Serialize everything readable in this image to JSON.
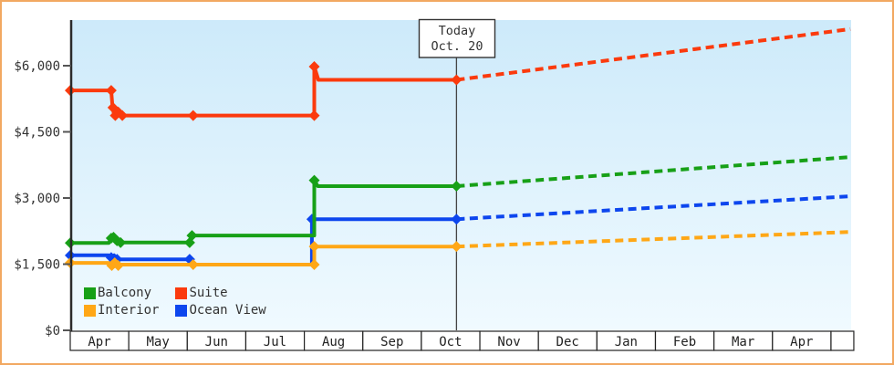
{
  "chart_data": {
    "type": "line",
    "title": "",
    "xlabel": "",
    "ylabel": "",
    "ylim": [
      0,
      7050
    ],
    "grid": false,
    "today_line": {
      "month_pos": 6.6,
      "label_line1": "Today",
      "label_line2": "Oct. 20"
    },
    "months": [
      "Apr",
      "May",
      "Jun",
      "Jul",
      "Aug",
      "Sep",
      "Oct",
      "Nov",
      "Dec",
      "Jan",
      "Feb",
      "Mar",
      "Apr"
    ],
    "y_ticks": [
      {
        "label": "$0",
        "value": 0
      },
      {
        "label": "$1,500",
        "value": 1500
      },
      {
        "label": "$3,000",
        "value": 3000
      },
      {
        "label": "$4,500",
        "value": 4500
      },
      {
        "label": "$6,000",
        "value": 6000
      }
    ],
    "series": [
      {
        "name": "Ocean View",
        "color": "#0d46ee",
        "history": [
          [
            0,
            1700
          ],
          [
            0.66,
            1700
          ],
          [
            0.7,
            1630
          ],
          [
            0.75,
            1700
          ],
          [
            0.8,
            1610
          ],
          [
            2.04,
            1610
          ],
          [
            2.08,
            1490
          ],
          [
            4.13,
            1490
          ],
          [
            4.13,
            2520
          ],
          [
            6.6,
            2520
          ]
        ],
        "markers": [
          [
            0,
            1700
          ],
          [
            0.7,
            1650
          ],
          [
            0.8,
            1610
          ],
          [
            2.04,
            1610
          ],
          [
            4.13,
            2520
          ],
          [
            6.6,
            2520
          ]
        ],
        "forecast": [
          [
            6.6,
            2520
          ],
          [
            13.33,
            3040
          ]
        ]
      },
      {
        "name": "Interior",
        "color": "#ffa716",
        "history": [
          [
            0,
            1530
          ],
          [
            0.66,
            1530
          ],
          [
            0.71,
            1470
          ],
          [
            0.75,
            1530
          ],
          [
            0.8,
            1470
          ],
          [
            0.86,
            1490
          ],
          [
            2.1,
            1490
          ],
          [
            4.17,
            1490
          ],
          [
            4.17,
            1900
          ],
          [
            6.6,
            1900
          ]
        ],
        "markers": [
          [
            0,
            1530
          ],
          [
            0.71,
            1470
          ],
          [
            0.76,
            1530
          ],
          [
            0.82,
            1470
          ],
          [
            2.1,
            1490
          ],
          [
            4.17,
            1490
          ],
          [
            4.17,
            1900
          ],
          [
            6.6,
            1900
          ]
        ],
        "forecast": [
          [
            6.6,
            1900
          ],
          [
            13.33,
            2230
          ]
        ]
      },
      {
        "name": "Balcony",
        "color": "#17a017",
        "history": [
          [
            0,
            1980
          ],
          [
            0.66,
            1980
          ],
          [
            0.7,
            2090
          ],
          [
            0.74,
            2110
          ],
          [
            0.78,
            1990
          ],
          [
            0.82,
            2070
          ],
          [
            0.86,
            1990
          ],
          [
            2.04,
            1990
          ],
          [
            2.08,
            2150
          ],
          [
            4.17,
            2150
          ],
          [
            4.17,
            3400
          ],
          [
            4.23,
            3270
          ],
          [
            6.6,
            3270
          ]
        ],
        "markers": [
          [
            0,
            1980
          ],
          [
            0.7,
            2090
          ],
          [
            0.74,
            2110
          ],
          [
            0.8,
            2030
          ],
          [
            0.86,
            1990
          ],
          [
            2.04,
            1990
          ],
          [
            2.08,
            2150
          ],
          [
            4.17,
            3400
          ],
          [
            6.6,
            3270
          ]
        ],
        "forecast": [
          [
            6.6,
            3270
          ],
          [
            13.33,
            3930
          ]
        ]
      },
      {
        "name": "Suite",
        "color": "#fb3a0d",
        "history": [
          [
            0,
            5440
          ],
          [
            0.7,
            5440
          ],
          [
            0.72,
            5100
          ],
          [
            0.75,
            4870
          ],
          [
            0.79,
            5000
          ],
          [
            0.83,
            4870
          ],
          [
            0.87,
            4950
          ],
          [
            0.91,
            4870
          ],
          [
            2.1,
            4870
          ],
          [
            4.17,
            4870
          ],
          [
            4.17,
            5980
          ],
          [
            4.24,
            5680
          ],
          [
            6.6,
            5680
          ]
        ],
        "markers": [
          [
            0,
            5440
          ],
          [
            0.7,
            5440
          ],
          [
            0.73,
            5050
          ],
          [
            0.77,
            4870
          ],
          [
            0.82,
            4950
          ],
          [
            0.89,
            4870
          ],
          [
            2.1,
            4870
          ],
          [
            4.17,
            4870
          ],
          [
            4.17,
            5980
          ],
          [
            6.6,
            5680
          ]
        ],
        "forecast": [
          [
            6.6,
            5680
          ],
          [
            13.33,
            6830
          ]
        ]
      }
    ],
    "legend": [
      {
        "label": "Balcony",
        "color": "#17a017"
      },
      {
        "label": "Suite",
        "color": "#fb3a0d"
      },
      {
        "label": "Interior",
        "color": "#ffa716"
      },
      {
        "label": "Ocean View",
        "color": "#0d46ee"
      }
    ],
    "legend_position": "bottom-left"
  },
  "frame": {
    "border_color": "#f2a861",
    "plot_bg_top": "#cdeafa",
    "plot_bg_bottom": "#f0faff"
  }
}
